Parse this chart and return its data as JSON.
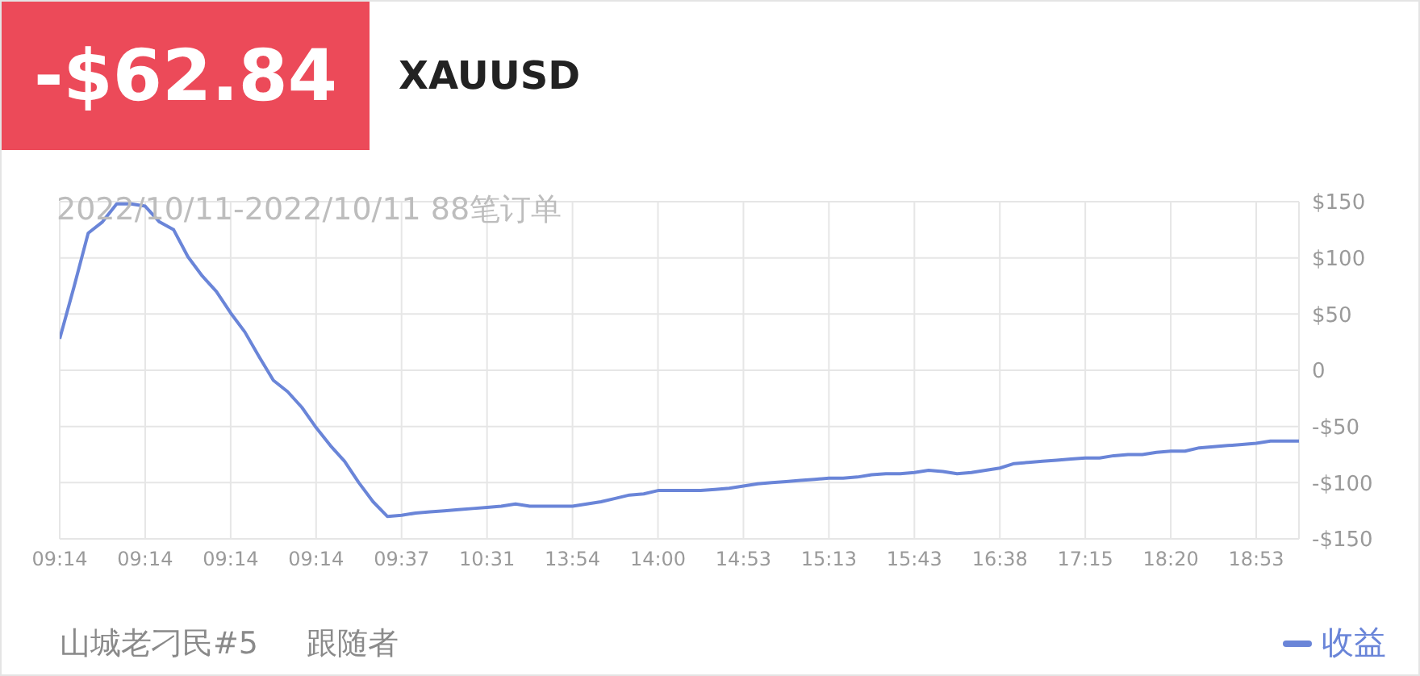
{
  "chart_data": {
    "type": "line",
    "title": "XAUUSD",
    "subtitle": "2022/10/11-2022/10/11 88笔订单",
    "annotations": [
      "-$62.84",
      "山城老刁民#5",
      "跟随者"
    ],
    "categories": [
      "09:14",
      null,
      null,
      null,
      null,
      null,
      "09:14",
      null,
      null,
      null,
      null,
      null,
      "09:14",
      null,
      null,
      null,
      null,
      null,
      "09:14",
      null,
      null,
      null,
      null,
      null,
      "09:37",
      null,
      null,
      null,
      null,
      null,
      "10:31",
      null,
      null,
      null,
      null,
      null,
      "13:54",
      null,
      null,
      null,
      null,
      null,
      "14:00",
      null,
      null,
      null,
      null,
      null,
      "14:53",
      null,
      null,
      null,
      null,
      null,
      "15:13",
      null,
      null,
      null,
      null,
      null,
      "15:43",
      null,
      null,
      null,
      null,
      null,
      "16:38",
      null,
      null,
      null,
      null,
      null,
      "17:15",
      null,
      null,
      null,
      null,
      null,
      "18:20",
      null,
      null,
      null,
      null,
      null,
      "18:53",
      null,
      null,
      null
    ],
    "series": [
      {
        "name": "收益",
        "color": "#6a85d8",
        "values": [
          28,
          74,
          122,
          132,
          148,
          148,
          146,
          132,
          125,
          101,
          84,
          70,
          51,
          34,
          12,
          -9,
          -19,
          -33,
          -51,
          -67,
          -81,
          -100,
          -117,
          -130,
          -129,
          -127,
          -126,
          -125,
          -124,
          -123,
          -122,
          -121,
          -119,
          -121,
          -121,
          -121,
          -121,
          -119,
          -117,
          -114,
          -111,
          -110,
          -107,
          -107,
          -107,
          -107,
          -106,
          -105,
          -103,
          -101,
          -100,
          -99,
          -98,
          -97,
          -96,
          -96,
          -95,
          -93,
          -92,
          -92,
          -91,
          -89,
          -90,
          -92,
          -91,
          -89,
          -87,
          -83,
          -82,
          -81,
          -80,
          -79,
          -78,
          -78,
          -76,
          -75,
          -75,
          -73,
          -72,
          -72,
          -69,
          -68,
          -67,
          -66,
          -65,
          -63,
          -63,
          -63
        ]
      }
    ],
    "ylim": [
      -150,
      150
    ],
    "yticks": [
      {
        "value": -150,
        "label": "-$150"
      },
      {
        "value": -100,
        "label": "-$100"
      },
      {
        "value": -50,
        "label": "-$50"
      },
      0,
      {
        "value": 50,
        "label": "$50"
      },
      {
        "value": 100,
        "label": "$100"
      },
      {
        "value": 150,
        "label": "$150"
      }
    ],
    "grid": true,
    "legend": "bottom right",
    "marker": "none",
    "line_style": "solid"
  }
}
